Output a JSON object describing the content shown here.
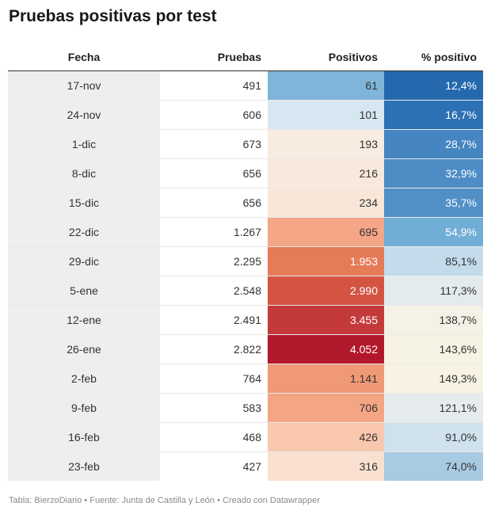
{
  "title": "Pruebas positivas por test",
  "footer": "Tabla: BierzoDiario • Fuente: Junta de Castilla y León • Creado con Datawrapper",
  "chart_data": {
    "type": "table",
    "columns": [
      "Fecha",
      "Pruebas",
      "Positivos",
      "% positivo"
    ],
    "rows": [
      {
        "fecha": "17-nov",
        "pruebas": "491",
        "positivos": "61",
        "pct": "12,4%",
        "pos_bg": "#7fb5d8",
        "pos_fg": "#333333",
        "pct_bg": "#2468ae",
        "pct_fg": "#ffffff"
      },
      {
        "fecha": "24-nov",
        "pruebas": "606",
        "positivos": "101",
        "pct": "16,7%",
        "pos_bg": "#d7e7f1",
        "pos_fg": "#333333",
        "pct_bg": "#2d71b5",
        "pct_fg": "#ffffff"
      },
      {
        "fecha": "1-dic",
        "pruebas": "673",
        "positivos": "193",
        "pct": "28,7%",
        "pos_bg": "#f8ebdf",
        "pos_fg": "#333333",
        "pct_bg": "#4585c1",
        "pct_fg": "#ffffff"
      },
      {
        "fecha": "8-dic",
        "pruebas": "656",
        "positivos": "216",
        "pct": "32,9%",
        "pos_bg": "#f8e9dc",
        "pos_fg": "#333333",
        "pct_bg": "#4d8cc5",
        "pct_fg": "#ffffff"
      },
      {
        "fecha": "15-dic",
        "pruebas": "656",
        "positivos": "234",
        "pct": "35,7%",
        "pos_bg": "#f8e7d8",
        "pos_fg": "#333333",
        "pct_bg": "#5190c7",
        "pct_fg": "#ffffff"
      },
      {
        "fecha": "22-dic",
        "pruebas": "1.267",
        "positivos": "695",
        "pct": "54,9%",
        "pos_bg": "#f4a686",
        "pos_fg": "#333333",
        "pct_bg": "#71aed5",
        "pct_fg": "#ffffff"
      },
      {
        "fecha": "29-dic",
        "pruebas": "2.295",
        "positivos": "1.953",
        "pct": "85,1%",
        "pos_bg": "#e67b58",
        "pos_fg": "#ffffff",
        "pct_bg": "#c3dbeb",
        "pct_fg": "#333333"
      },
      {
        "fecha": "5-ene",
        "pruebas": "2.548",
        "positivos": "2.990",
        "pct": "117,3%",
        "pos_bg": "#d45444",
        "pos_fg": "#ffffff",
        "pct_bg": "#e4ebee",
        "pct_fg": "#333333"
      },
      {
        "fecha": "12-ene",
        "pruebas": "2.491",
        "positivos": "3.455",
        "pct": "138,7%",
        "pos_bg": "#c43a3b",
        "pos_fg": "#ffffff",
        "pct_bg": "#f4f1e6",
        "pct_fg": "#333333"
      },
      {
        "fecha": "26-ene",
        "pruebas": "2.822",
        "positivos": "4.052",
        "pct": "143,6%",
        "pos_bg": "#b2182b",
        "pos_fg": "#ffffff",
        "pct_bg": "#f6f2e4",
        "pct_fg": "#333333"
      },
      {
        "fecha": "2-feb",
        "pruebas": "764",
        "positivos": "1.141",
        "pct": "149,3%",
        "pos_bg": "#f09977",
        "pos_fg": "#333333",
        "pct_bg": "#f7f2e2",
        "pct_fg": "#333333"
      },
      {
        "fecha": "9-feb",
        "pruebas": "583",
        "positivos": "706",
        "pct": "121,1%",
        "pos_bg": "#f4a584",
        "pos_fg": "#333333",
        "pct_bg": "#e6ecee",
        "pct_fg": "#333333"
      },
      {
        "fecha": "16-feb",
        "pruebas": "468",
        "positivos": "426",
        "pct": "91,0%",
        "pos_bg": "#f8c7ad",
        "pos_fg": "#333333",
        "pct_bg": "#cfe1ed",
        "pct_fg": "#333333"
      },
      {
        "fecha": "23-feb",
        "pruebas": "427",
        "positivos": "316",
        "pct": "74,0%",
        "pos_bg": "#f9e0d0",
        "pos_fg": "#333333",
        "pct_bg": "#a8cae2",
        "pct_fg": "#333333"
      }
    ]
  }
}
